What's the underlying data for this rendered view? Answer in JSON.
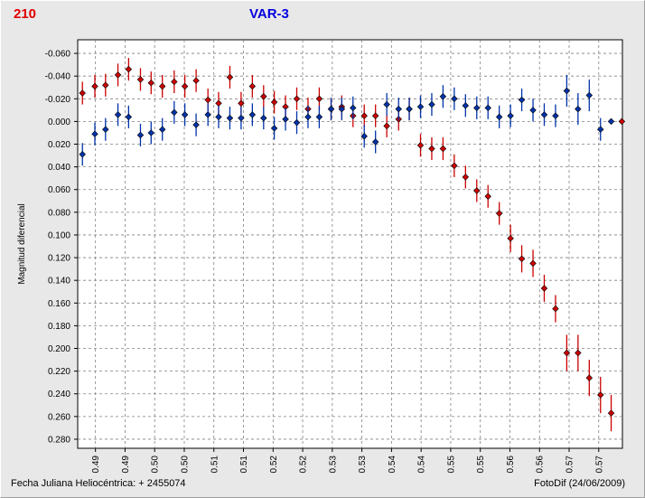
{
  "chart_data": {
    "type": "scatter",
    "title": "VAR-3",
    "corner_label": "210",
    "ylabel": "Magnitud diferencial",
    "footer_left": "Fecha Juliana Heliocéntrica:  + 2455074",
    "footer_right": "FotoDif (24/06/2009)",
    "y_inverted": true,
    "grid": true,
    "xlim": [
      0.4855,
      0.5775
    ],
    "ylim": [
      -0.072,
      0.288
    ],
    "y_ticks": [
      -0.06,
      -0.04,
      -0.02,
      0.0,
      0.02,
      0.04,
      0.06,
      0.08,
      0.1,
      0.12,
      0.14,
      0.16,
      0.18,
      0.2,
      0.22,
      0.24,
      0.26,
      0.28
    ],
    "y_tick_labels": [
      "-0.060",
      "-0.040",
      "-0.020",
      "0.000",
      "0.020",
      "0.040",
      "0.060",
      "0.080",
      "0.100",
      "0.120",
      "0.140",
      "0.160",
      "0.180",
      "0.200",
      "0.220",
      "0.240",
      "0.260",
      "0.280"
    ],
    "x_ticks": [
      0.4885,
      0.4935,
      0.4985,
      0.5035,
      0.5085,
      0.5135,
      0.5185,
      0.5235,
      0.5285,
      0.5335,
      0.5385,
      0.5435,
      0.5485,
      0.5535,
      0.5585,
      0.5635,
      0.5685,
      0.5735
    ],
    "x_tick_labels": [
      "0.49",
      "0.49",
      "0.50",
      "0.50",
      "0.51",
      "0.51",
      "0.52",
      "0.52",
      "0.53",
      "0.53",
      "0.54",
      "0.54",
      "0.55",
      "0.55",
      "0.56",
      "0.56",
      "0.57",
      "0.57"
    ],
    "series": [
      {
        "color": "#cc0000",
        "x": [
          0.4863,
          0.4884,
          0.4902,
          0.4923,
          0.4941,
          0.4961,
          0.4979,
          0.4998,
          0.5018,
          0.5036,
          0.5055,
          0.5075,
          0.5093,
          0.5112,
          0.5131,
          0.515,
          0.5169,
          0.5187,
          0.5206,
          0.5225,
          0.5244,
          0.5263,
          0.5283,
          0.5301,
          0.532,
          0.5339,
          0.5358,
          0.5377,
          0.5397,
          0.5415,
          0.5434,
          0.5453,
          0.5472,
          0.5491,
          0.551,
          0.5529,
          0.5548,
          0.5567,
          0.5586,
          0.5605,
          0.5624,
          0.5643,
          0.5662,
          0.5681,
          0.57,
          0.5719,
          0.5738,
          0.5756,
          0.5774
        ],
        "y": [
          -0.025,
          -0.031,
          -0.032,
          -0.041,
          -0.046,
          -0.037,
          -0.034,
          -0.031,
          -0.035,
          -0.031,
          -0.036,
          -0.019,
          -0.016,
          -0.039,
          -0.016,
          -0.031,
          -0.022,
          -0.017,
          -0.013,
          -0.02,
          -0.011,
          -0.02,
          -0.011,
          -0.013,
          -0.005,
          -0.005,
          -0.005,
          0.004,
          -0.002,
          -0.011,
          0.021,
          0.024,
          0.024,
          0.039,
          0.049,
          0.061,
          0.066,
          0.081,
          0.103,
          0.121,
          0.125,
          0.147,
          0.165,
          0.204,
          0.204,
          0.226,
          0.241,
          0.257,
          0.0
        ],
        "err": [
          0.01,
          0.01,
          0.01,
          0.01,
          0.01,
          0.01,
          0.01,
          0.01,
          0.01,
          0.01,
          0.01,
          0.01,
          0.01,
          0.01,
          0.01,
          0.01,
          0.01,
          0.01,
          0.01,
          0.01,
          0.01,
          0.01,
          0.01,
          0.01,
          0.01,
          0.01,
          0.01,
          0.01,
          0.01,
          0.01,
          0.01,
          0.01,
          0.01,
          0.01,
          0.01,
          0.01,
          0.01,
          0.01,
          0.012,
          0.012,
          0.012,
          0.012,
          0.012,
          0.016,
          0.016,
          0.016,
          0.016,
          0.016,
          0.0
        ]
      },
      {
        "color": "#0033aa",
        "x": [
          0.4863,
          0.4884,
          0.4902,
          0.4923,
          0.4941,
          0.4961,
          0.4979,
          0.4998,
          0.5018,
          0.5036,
          0.5055,
          0.5075,
          0.5093,
          0.5112,
          0.5131,
          0.515,
          0.5169,
          0.5187,
          0.5206,
          0.5225,
          0.5244,
          0.5263,
          0.5283,
          0.5301,
          0.532,
          0.5339,
          0.5358,
          0.5377,
          0.5397,
          0.5415,
          0.5434,
          0.5453,
          0.5472,
          0.5491,
          0.551,
          0.5529,
          0.5548,
          0.5567,
          0.5586,
          0.5605,
          0.5624,
          0.5643,
          0.5662,
          0.5681,
          0.57,
          0.5719,
          0.5738,
          0.5756,
          0.5774
        ],
        "y": [
          0.029,
          0.011,
          0.007,
          -0.006,
          -0.004,
          0.012,
          0.01,
          0.007,
          -0.008,
          -0.006,
          0.003,
          -0.006,
          -0.004,
          -0.003,
          -0.003,
          -0.006,
          -0.003,
          0.006,
          -0.002,
          0.001,
          -0.004,
          -0.004,
          -0.011,
          -0.011,
          -0.012,
          0.013,
          0.018,
          -0.015,
          -0.011,
          -0.011,
          -0.013,
          -0.015,
          -0.022,
          -0.02,
          -0.014,
          -0.012,
          -0.012,
          -0.004,
          -0.005,
          -0.019,
          -0.01,
          -0.006,
          -0.005,
          -0.027,
          -0.011,
          -0.023,
          0.007,
          0.0,
          0.0
        ],
        "err": [
          0.01,
          0.01,
          0.01,
          0.01,
          0.01,
          0.01,
          0.01,
          0.01,
          0.01,
          0.01,
          0.01,
          0.01,
          0.01,
          0.01,
          0.01,
          0.01,
          0.01,
          0.01,
          0.01,
          0.01,
          0.01,
          0.01,
          0.01,
          0.01,
          0.01,
          0.01,
          0.01,
          0.01,
          0.01,
          0.01,
          0.01,
          0.01,
          0.01,
          0.01,
          0.01,
          0.01,
          0.01,
          0.01,
          0.01,
          0.01,
          0.01,
          0.01,
          0.01,
          0.014,
          0.014,
          0.014,
          0.01,
          0.0,
          0.0
        ]
      }
    ]
  }
}
